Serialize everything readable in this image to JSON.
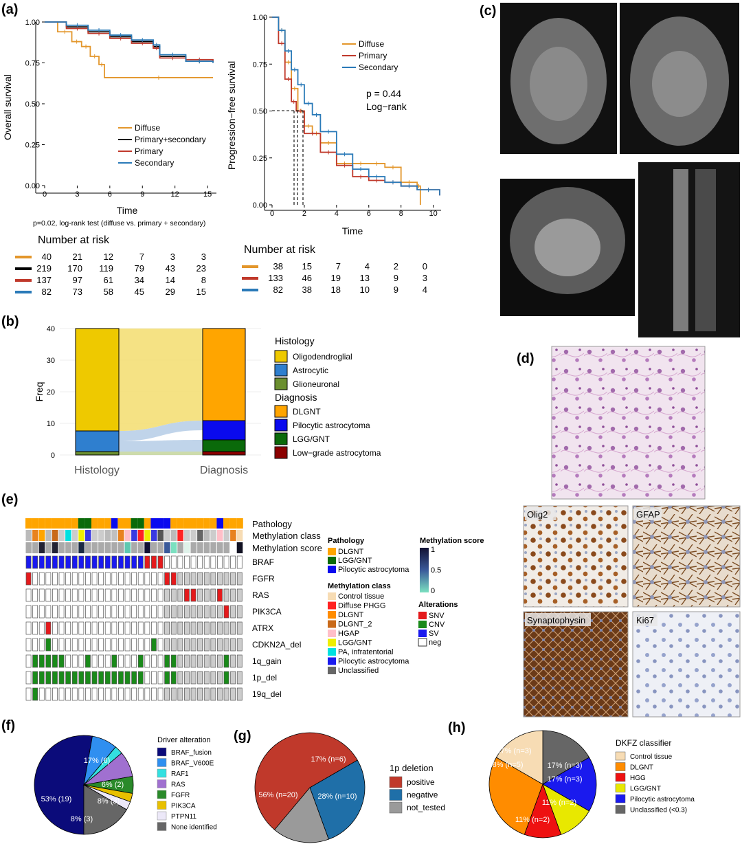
{
  "panels": {
    "a": "(a)",
    "b": "(b)",
    "c": "(c)",
    "d": "(d)",
    "e": "(e)",
    "f": "(f)",
    "g": "(g)",
    "h": "(h)"
  },
  "colors": {
    "diffuse": "#e3962b",
    "combined": "#000000",
    "primary": "#c0392b",
    "secondary": "#2a7ab8"
  },
  "os": {
    "ylabel": "Overall survival",
    "xlabel": "Time",
    "legend": [
      "Diffuse",
      "Primary+secondary",
      "Primary",
      "Secondary"
    ],
    "footnote": "p=0.02, log-rank test (diffuse vs. primary + secondary)",
    "risk_title": "Number at risk",
    "risk_rows": [
      [
        "40",
        "21",
        "12",
        "7",
        "3",
        "3"
      ],
      [
        "219",
        "170",
        "119",
        "79",
        "43",
        "23"
      ],
      [
        "137",
        "97",
        "61",
        "34",
        "14",
        "8"
      ],
      [
        "82",
        "73",
        "58",
        "45",
        "29",
        "15"
      ]
    ]
  },
  "pfs": {
    "ylabel": "Progression−free survival",
    "xlabel": "Time",
    "legend": [
      "Diffuse",
      "Primary",
      "Secondary"
    ],
    "pvalue": "p = 0.44",
    "test": "Log−rank",
    "risk_title": "Number at risk",
    "risk_rows": [
      [
        "38",
        "15",
        "7",
        "4",
        "2",
        "0"
      ],
      [
        "133",
        "46",
        "19",
        "13",
        "9",
        "3"
      ],
      [
        "82",
        "38",
        "18",
        "10",
        "9",
        "4"
      ]
    ]
  },
  "sankey": {
    "ylabel": "Freq",
    "x_labels": [
      "Histology",
      "Diagnosis"
    ],
    "hist_title": "Histology",
    "hist_items": [
      "Oligodendroglial",
      "Astrocytic",
      "Glioneuronal"
    ],
    "diag_title": "Diagnosis",
    "diag_items": [
      "DLGNT",
      "Pilocytic astrocytoma",
      "LGG/GNT",
      "Low−grade astrocytoma"
    ]
  },
  "ihc": [
    "Olig2",
    "GFAP",
    "Synaptophysin",
    "Ki67"
  ],
  "oncoprint": {
    "rows": [
      "Pathology",
      "Methylation class",
      "Methylation score",
      "BRAF",
      "FGFR",
      "RAS",
      "PIK3CA",
      "ATRX",
      "CDKN2A_del",
      "1q_gain",
      "1p_del",
      "19q_del"
    ],
    "legend_pathology_title": "Pathology",
    "legend_pathology": [
      "DLGNT",
      "LGG/GNT",
      "Pilocytic astrocytoma"
    ],
    "legend_class_title": "Methylation class",
    "legend_class": [
      "Control tissue",
      "Diffuse PHGG",
      "DLGNT",
      "DLGNT_2",
      "HGAP",
      "LGG/GNT",
      "PA, infratentorial",
      "Pilocytic astrocytoma",
      "Unclassified"
    ],
    "legend_score_title": "Methylation score",
    "score_ticks": [
      "1",
      "0.5",
      "0"
    ],
    "legend_alt_title": "Alterations",
    "legend_alt": [
      "SNV",
      "CNV",
      "SV",
      "neg"
    ]
  },
  "pie_f": {
    "legend_title": "Driver alteration",
    "items": [
      "BRAF_fusion",
      "BRAF_V600E",
      "RAF1",
      "RAS",
      "FGFR",
      "PIK3CA",
      "PTPN11",
      "None identified"
    ],
    "labels": [
      "53% (19)",
      "8% (3)",
      "8% (3)",
      "6% (2)",
      "17% (6)"
    ]
  },
  "pie_g": {
    "legend_title": "1p deletion",
    "items": [
      "positive",
      "negative",
      "not_tested"
    ],
    "labels": [
      "56% (n=20)",
      "28% (n=10)",
      "17% (n=6)"
    ]
  },
  "pie_h": {
    "legend_title": "DKFZ classifier",
    "items": [
      "Control tissue",
      "DLGNT",
      "HGG",
      "LGG/GNT",
      "Pilocytic astrocytoma",
      "Unclassified (<0.3)"
    ],
    "labels": [
      "17% (n=3)",
      "17% (n=3)",
      "11% (n=2)",
      "11% (n=2)",
      "28% (n=5)",
      "17% (n=3)"
    ]
  },
  "chart_data": [
    {
      "type": "line",
      "title": "",
      "xlabel": "Time",
      "ylabel": "Overall survival",
      "xlim": [
        0,
        15.5
      ],
      "ylim": [
        0,
        1
      ],
      "x_ticks": [
        0,
        3,
        6,
        9,
        12,
        15
      ],
      "y_ticks": [
        "0.00",
        "0.25",
        "0.50",
        "0.75",
        "1.00"
      ],
      "series": [
        {
          "name": "Diffuse",
          "x": [
            0,
            1.2,
            2.5,
            3.4,
            4.2,
            5.0,
            5.5,
            15.5
          ],
          "y": [
            1.0,
            0.94,
            0.88,
            0.85,
            0.79,
            0.74,
            0.66,
            0.66
          ]
        },
        {
          "name": "Primary+secondary",
          "x": [
            0,
            2,
            4,
            6,
            8,
            10,
            10.6,
            13,
            15.5
          ],
          "y": [
            1.0,
            0.97,
            0.94,
            0.91,
            0.88,
            0.85,
            0.79,
            0.76,
            0.75
          ]
        },
        {
          "name": "Primary",
          "x": [
            0,
            2,
            4,
            6,
            8,
            10,
            10.6,
            13,
            15.5
          ],
          "y": [
            1.0,
            0.96,
            0.93,
            0.9,
            0.87,
            0.84,
            0.78,
            0.77,
            0.76
          ]
        },
        {
          "name": "Secondary",
          "x": [
            0,
            2,
            4,
            6,
            8,
            10,
            10.6,
            13,
            15.5
          ],
          "y": [
            1.0,
            0.98,
            0.95,
            0.92,
            0.89,
            0.86,
            0.8,
            0.76,
            0.75
          ]
        }
      ]
    },
    {
      "type": "line",
      "title": "",
      "xlabel": "Time",
      "ylabel": "Progression−free survival",
      "xlim": [
        0,
        10.4
      ],
      "ylim": [
        0,
        1
      ],
      "x_ticks": [
        0,
        2,
        4,
        6,
        8,
        10
      ],
      "y_ticks": [
        "0.00",
        "0.25",
        "0.50",
        "0.75",
        "1.00"
      ],
      "series": [
        {
          "name": "Diffuse",
          "x": [
            0,
            0.4,
            0.8,
            1.2,
            1.6,
            2.0,
            2.5,
            3.0,
            4.0,
            5.0,
            6.0,
            7.0,
            8.0,
            9.0,
            9.2
          ],
          "y": [
            1.0,
            0.93,
            0.76,
            0.62,
            0.5,
            0.42,
            0.38,
            0.33,
            0.22,
            0.22,
            0.22,
            0.2,
            0.12,
            0.1,
            0.0
          ]
        },
        {
          "name": "Primary",
          "x": [
            0,
            0.4,
            0.8,
            1.2,
            1.5,
            2.0,
            3.0,
            4.0,
            5.0,
            6.0,
            7.0,
            8.0,
            9.0,
            10.4
          ],
          "y": [
            1.0,
            0.86,
            0.67,
            0.55,
            0.5,
            0.38,
            0.28,
            0.21,
            0.15,
            0.13,
            0.12,
            0.1,
            0.08,
            0.05
          ]
        },
        {
          "name": "Secondary",
          "x": [
            0,
            0.4,
            0.8,
            1.2,
            1.6,
            2.0,
            2.5,
            3.0,
            4.0,
            5.0,
            6.0,
            7.0,
            8.0,
            9.0,
            10.4
          ],
          "y": [
            1.0,
            0.93,
            0.82,
            0.72,
            0.64,
            0.54,
            0.48,
            0.39,
            0.27,
            0.19,
            0.15,
            0.12,
            0.1,
            0.08,
            0.05
          ]
        }
      ]
    },
    {
      "type": "bar",
      "title": "",
      "xlabel": "",
      "ylabel": "Freq",
      "ylim": [
        0,
        40
      ],
      "y_ticks": [
        0,
        10,
        20,
        30,
        40
      ],
      "categories": [
        "Histology",
        "Diagnosis"
      ],
      "series": [
        {
          "name": "Oligodendroglial",
          "values": [
            32,
            0
          ]
        },
        {
          "name": "Astrocytic",
          "values": [
            7,
            0
          ]
        },
        {
          "name": "Glioneuronal",
          "values": [
            1,
            0
          ]
        },
        {
          "name": "DLGNT",
          "values": [
            0,
            29
          ]
        },
        {
          "name": "Pilocytic astrocytoma",
          "values": [
            0,
            6
          ]
        },
        {
          "name": "LGG/GNT",
          "values": [
            0,
            4
          ]
        },
        {
          "name": "Low−grade astrocytoma",
          "values": [
            0,
            1
          ]
        }
      ]
    },
    {
      "type": "pie",
      "title": "",
      "categories": [
        "BRAF_fusion",
        "BRAF_V600E",
        "RAF1",
        "RAS",
        "FGFR",
        "PIK3CA",
        "PTPN11",
        "None identified"
      ],
      "values": [
        19,
        3,
        1,
        3,
        2,
        1,
        1,
        6
      ]
    },
    {
      "type": "pie",
      "title": "",
      "categories": [
        "positive",
        "negative",
        "not_tested"
      ],
      "values": [
        20,
        10,
        6
      ]
    },
    {
      "type": "pie",
      "title": "",
      "categories": [
        "Unclassified (<0.3)",
        "Pilocytic astrocytoma",
        "LGG/GNT",
        "HGG",
        "DLGNT",
        "Control tissue"
      ],
      "values": [
        3,
        3,
        2,
        2,
        5,
        3
      ]
    }
  ]
}
